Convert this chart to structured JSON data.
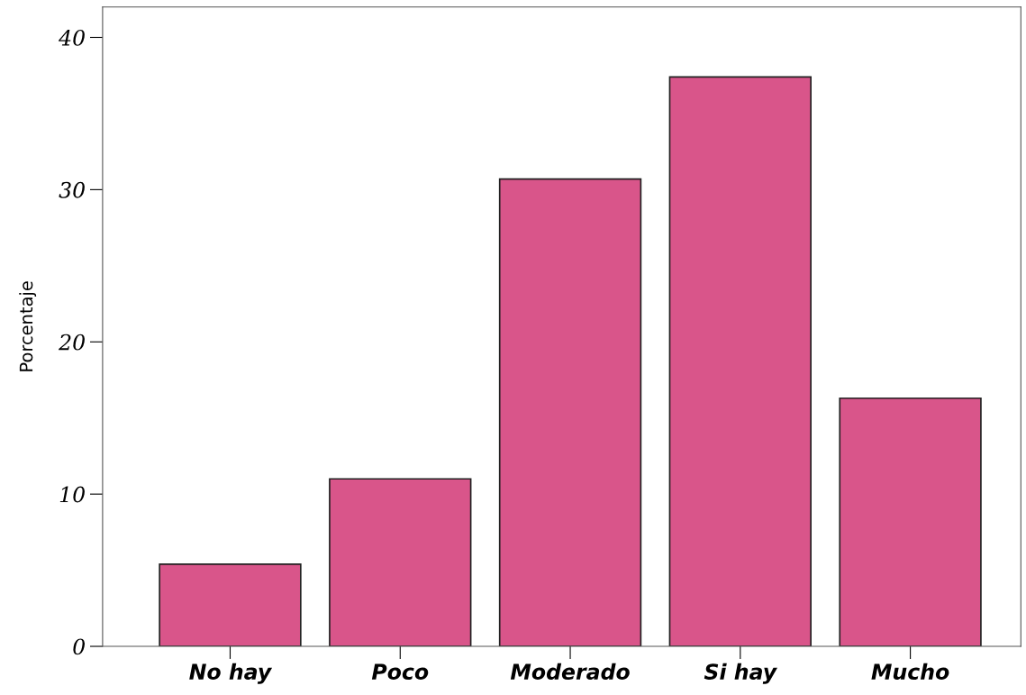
{
  "chart_data": {
    "type": "bar",
    "ylabel": "Porcentaje",
    "categories": [
      "No hay",
      "Poco",
      "Moderado",
      "Si hay",
      "Mucho"
    ],
    "values": [
      5.4,
      11.0,
      30.7,
      37.4,
      16.3
    ],
    "color": "#d9558a",
    "ylim": [
      0,
      42
    ],
    "yticks": [
      0,
      10,
      20,
      30,
      40
    ],
    "grid": false
  }
}
